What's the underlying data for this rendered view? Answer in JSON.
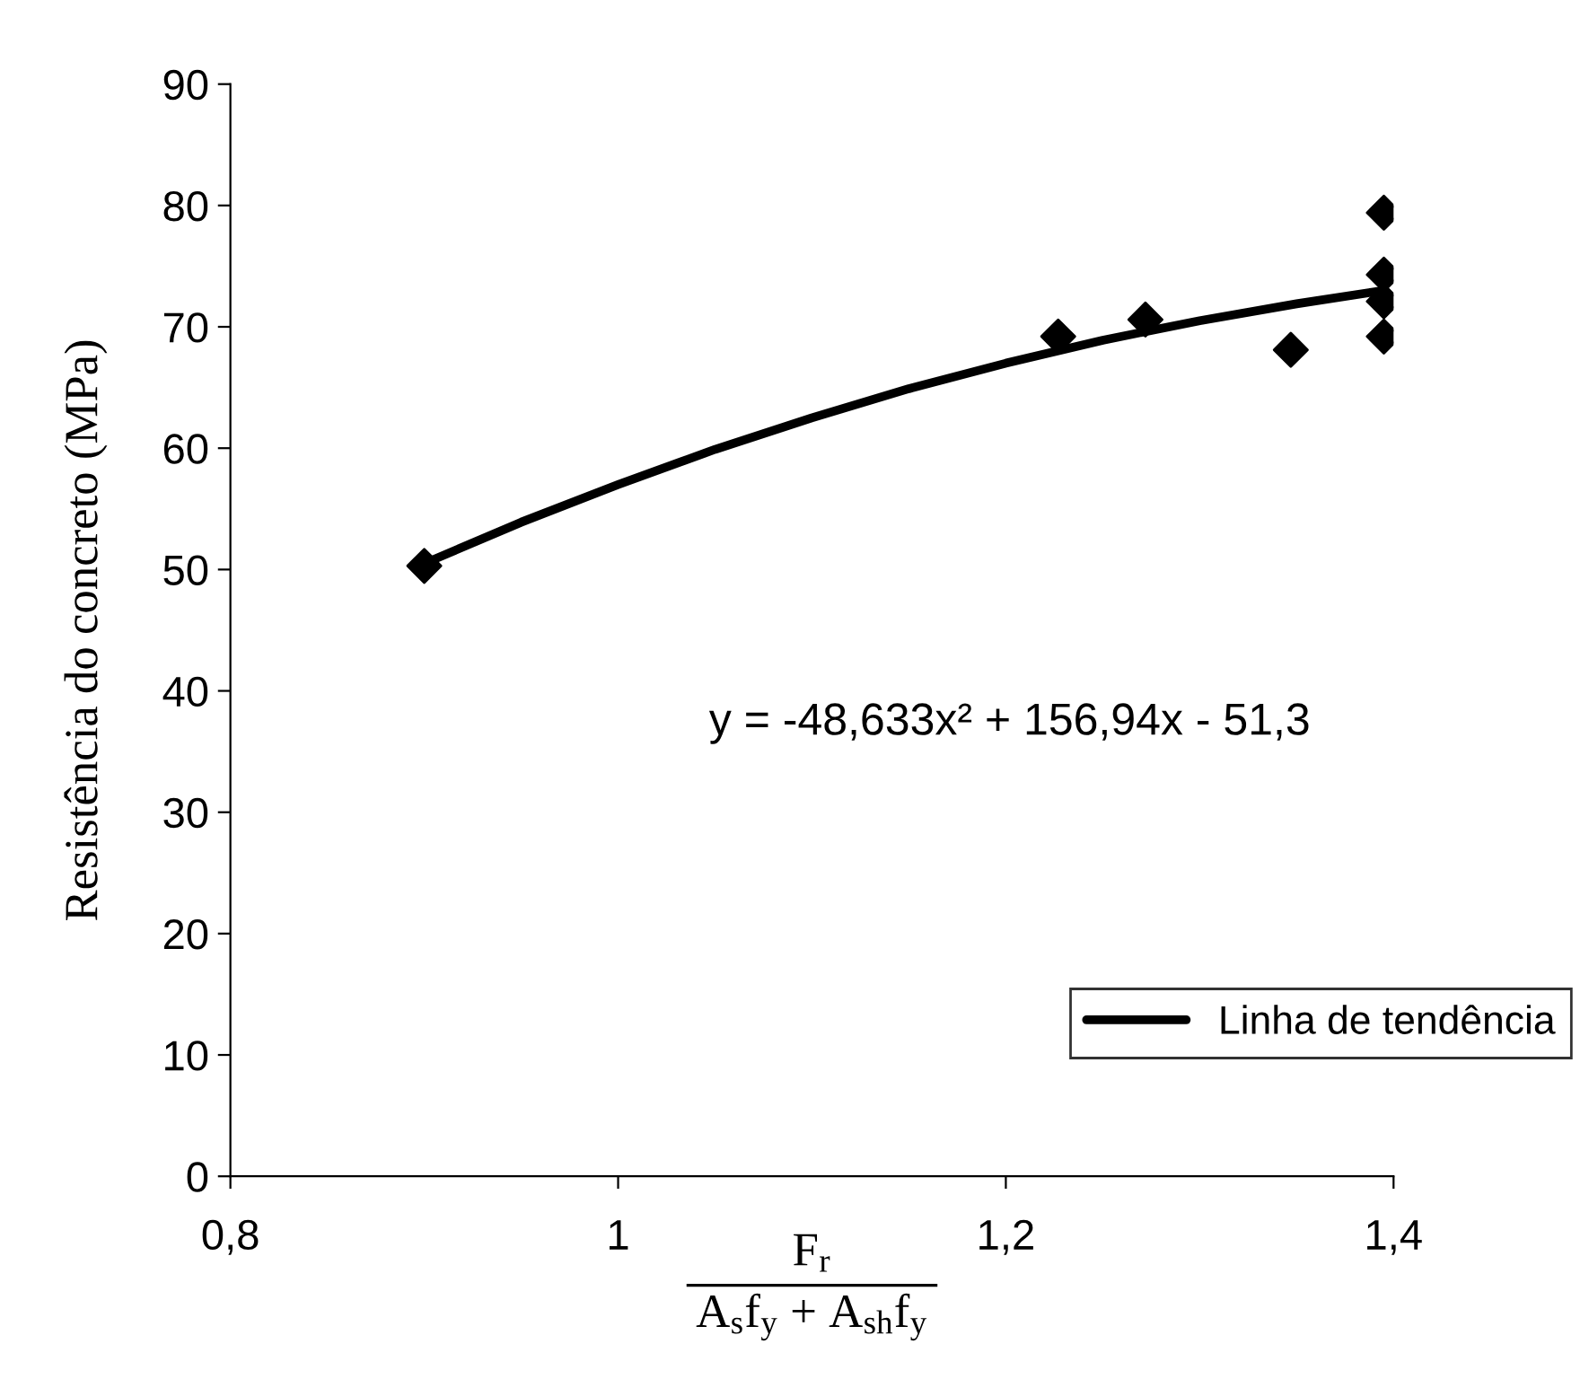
{
  "chart_data": {
    "type": "scatter",
    "xlabel": "F$_{r}$\nA$_{s}$f$_{y}$ + A$_{sh}$f$_{y}$",
    "ylabel": "Resistência do concreto (MPa)",
    "annotations": [
      "y = -48,633x² + 156,94x - 51,3"
    ],
    "x": [
      0.9,
      1.227,
      1.272,
      1.347,
      1.395,
      1.395,
      1.395,
      1.395
    ],
    "series": [
      {
        "color": "#000000",
        "marker": "diamond",
        "values": [
          50.3,
          69.2,
          70.6,
          68.1,
          79.4,
          74.3,
          72.1,
          69.2
        ]
      },
      {
        "type": "line",
        "name": "Linha de tendência",
        "color": "#000000",
        "marker": "none",
        "line_style": "solid",
        "x": [
          0.9,
          0.95,
          1.0,
          1.05,
          1.1,
          1.15,
          1.2,
          1.25,
          1.3,
          1.35,
          1.395
        ],
        "values": [
          50.5,
          53.9,
          57.0,
          59.9,
          62.5,
          64.9,
          67.0,
          68.9,
          70.5,
          71.9,
          73.0
        ]
      }
    ],
    "xlim": [
      0.8,
      1.4
    ],
    "ylim": [
      0,
      90
    ],
    "xticks": [
      {
        "value": 0.8,
        "label": "0,8"
      },
      1,
      {
        "value": 1.2,
        "label": "1,2"
      },
      {
        "value": 1.4,
        "label": "1,4"
      }
    ],
    "yticks": [
      0,
      10,
      20,
      30,
      40,
      50,
      60,
      70,
      80,
      90
    ],
    "grid": false,
    "legend": "bottom right"
  }
}
